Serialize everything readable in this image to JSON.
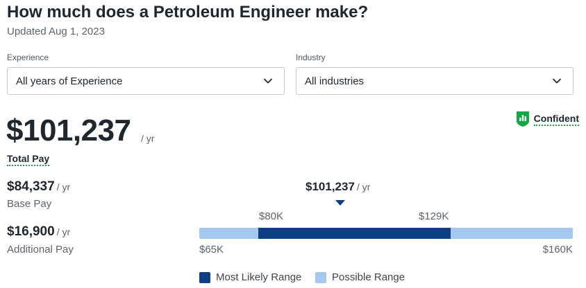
{
  "page": {
    "title": "How much does a Petroleum Engineer make?",
    "updated": "Updated Aug 1, 2023"
  },
  "filters": {
    "experience": {
      "label": "Experience",
      "value": "All years of Experience"
    },
    "industry": {
      "label": "Industry",
      "value": "All industries"
    }
  },
  "confidence": {
    "label": "Confident",
    "icon": "bar-chart-shield-icon",
    "color": "#0caa41"
  },
  "total_pay": {
    "amount": "$101,237",
    "unit": "/ yr",
    "label": "Total Pay"
  },
  "base_pay": {
    "amount": "$84,337",
    "unit": "/ yr",
    "label": "Base Pay"
  },
  "additional_pay": {
    "amount": "$16,900",
    "unit": "/ yr",
    "label": "Additional Pay"
  },
  "range": {
    "median_label": "$101,237",
    "median_unit": "/ yr",
    "median_value": 101237,
    "likely_low_label": "$80K",
    "likely_high_label": "$129K",
    "likely_low": 80000,
    "likely_high": 129000,
    "min_label": "$65K",
    "max_label": "$160K",
    "min": 65000,
    "max": 160000
  },
  "legend": {
    "most_likely": "Most Likely Range",
    "possible": "Possible Range"
  },
  "colors": {
    "most_likely": "#0d3f86",
    "possible": "#a5c8f0",
    "accent_green": "#0caa41"
  }
}
